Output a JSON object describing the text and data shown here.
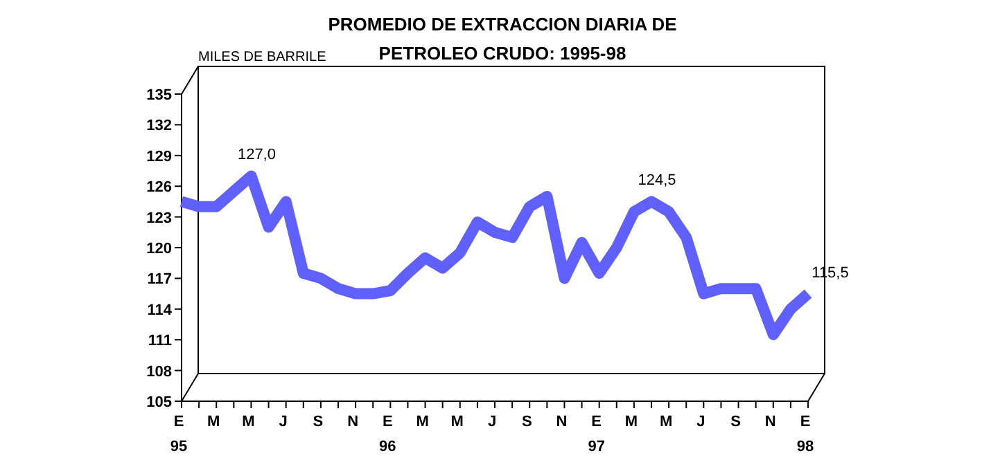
{
  "chart_data": {
    "type": "line",
    "title": "PROMEDIO DE EXTRACCION DIARIA DE\nPETROLEO CRUDO: 1995-98",
    "ylabel": "MILES DE BARRILE",
    "categories": [
      "E\n95",
      null,
      "M",
      null,
      "M",
      null,
      "J",
      null,
      "S",
      null,
      "N",
      null,
      "E\n96",
      null,
      "M",
      null,
      "M",
      null,
      "J",
      null,
      "S",
      null,
      "N",
      null,
      "E\n97",
      null,
      "M",
      null,
      "M",
      null,
      "J",
      null,
      "S",
      null,
      "N",
      null,
      "E\n98"
    ],
    "series": [
      {
        "color": "#6060ff",
        "values": [
          124.5,
          124,
          124,
          125.5,
          127,
          122,
          124.5,
          117.5,
          117,
          116,
          115.5,
          115.5,
          115.8,
          117.5,
          119,
          118,
          119.5,
          122.5,
          121.5,
          121,
          124,
          125,
          117,
          120.5,
          117.5,
          120,
          123.5,
          124.5,
          123.5,
          121,
          115.5,
          116,
          116,
          116,
          111.5,
          114,
          115.5
        ],
        "value_labels": [
          null,
          null,
          null,
          null,
          "127,0",
          null,
          null,
          null,
          null,
          null,
          null,
          null,
          null,
          null,
          null,
          null,
          null,
          null,
          null,
          null,
          null,
          null,
          null,
          null,
          null,
          null,
          null,
          "124,5",
          null,
          null,
          null,
          null,
          null,
          null,
          null,
          null,
          "115,5"
        ]
      }
    ],
    "ylim": [
      105,
      135
    ],
    "yticks": [
      105,
      108,
      111,
      114,
      117,
      120,
      123,
      126,
      129,
      132,
      135
    ],
    "grid": false,
    "marker": "none",
    "line_style": "solid"
  }
}
